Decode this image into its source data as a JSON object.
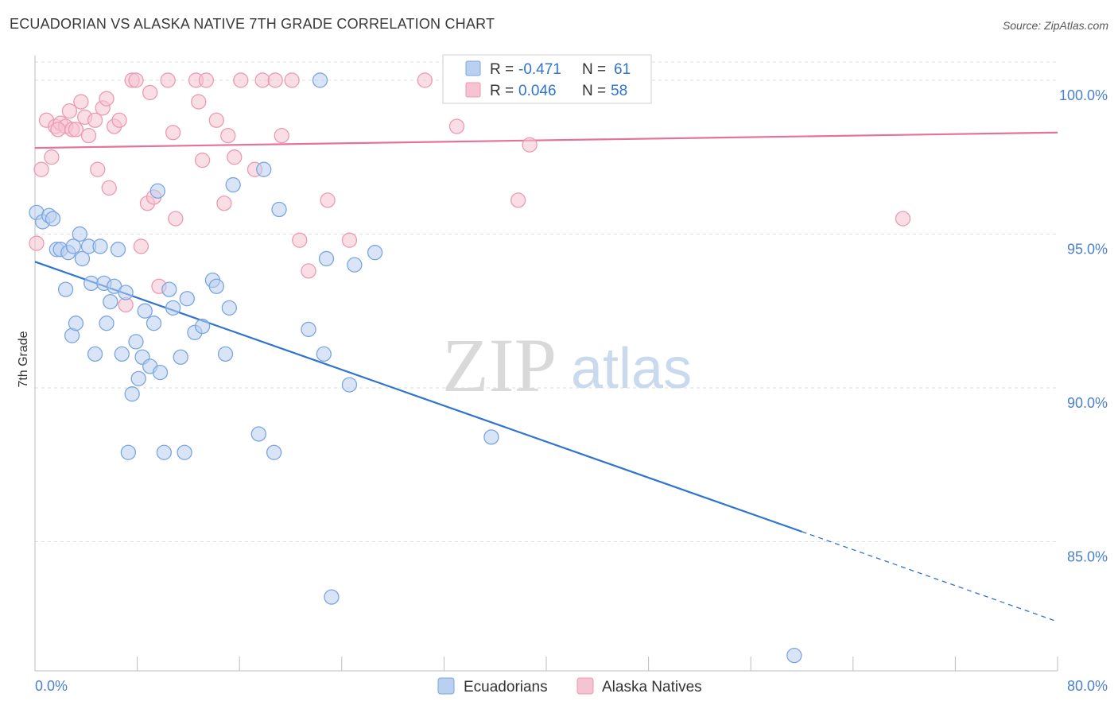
{
  "header": {
    "title": "ECUADORIAN VS ALASKA NATIVE 7TH GRADE CORRELATION CHART",
    "source": "Source: ZipAtlas.com"
  },
  "watermark": {
    "zip": "ZIP",
    "atlas": "atlas"
  },
  "legend_box": {
    "rows": [
      {
        "r_label": "R =",
        "r_value": "-0.471",
        "n_label": "N =",
        "n_value": "61"
      },
      {
        "r_label": "R =",
        "r_value": "0.046",
        "n_label": "N =",
        "n_value": "58"
      }
    ]
  },
  "bottom_legend": {
    "items": [
      "Ecuadorians",
      "Alaska Natives"
    ]
  },
  "colors": {
    "blue_fill": "#b9d0f1",
    "blue_stroke": "#7aa6e0",
    "blue_line": "#2f74d0",
    "pink_fill": "#f6c3d2",
    "pink_stroke": "#ec9ab3",
    "pink_line": "#e4729a",
    "tick": "#4a7fd0",
    "grid": "#dcdcdc"
  },
  "chart_data": {
    "type": "scatter",
    "title": "ECUADORIAN VS ALASKA NATIVE 7TH GRADE CORRELATION CHART",
    "xlabel": "",
    "ylabel": "7th Grade",
    "xlim": [
      0,
      80
    ],
    "ylim": [
      80.8,
      100.8
    ],
    "x_tick_labels": [
      "0.0%",
      "80.0%"
    ],
    "y_tick_labels": [
      "100.0%",
      "95.0%",
      "90.0%",
      "85.0%"
    ],
    "y_ticks": [
      100,
      95,
      90,
      85
    ],
    "grid": true,
    "legend_position": "top-center",
    "series": [
      {
        "name": "Ecuadorians",
        "r": -0.471,
        "n": 61,
        "trend": {
          "x0": 0,
          "y0": 94.1,
          "x_solid_end": 60,
          "x1": 80,
          "y1": 82.4
        },
        "points": [
          [
            0.1,
            95.7
          ],
          [
            0.6,
            95.4
          ],
          [
            1.1,
            95.6
          ],
          [
            1.4,
            95.5
          ],
          [
            1.7,
            94.5
          ],
          [
            2.0,
            94.5
          ],
          [
            2.4,
            93.2
          ],
          [
            2.6,
            94.4
          ],
          [
            2.9,
            91.7
          ],
          [
            3.2,
            92.1
          ],
          [
            3.5,
            95.0
          ],
          [
            3.7,
            94.2
          ],
          [
            4.2,
            94.6
          ],
          [
            4.4,
            93.4
          ],
          [
            4.7,
            91.1
          ],
          [
            5.1,
            94.6
          ],
          [
            5.4,
            93.4
          ],
          [
            5.6,
            92.1
          ],
          [
            5.9,
            92.8
          ],
          [
            6.2,
            93.3
          ],
          [
            6.5,
            94.5
          ],
          [
            6.8,
            91.1
          ],
          [
            7.1,
            93.1
          ],
          [
            7.3,
            87.9
          ],
          [
            7.6,
            89.8
          ],
          [
            7.9,
            91.5
          ],
          [
            8.1,
            90.3
          ],
          [
            8.4,
            91.0
          ],
          [
            8.6,
            92.5
          ],
          [
            9.0,
            90.7
          ],
          [
            9.3,
            92.1
          ],
          [
            9.6,
            96.4
          ],
          [
            9.8,
            90.5
          ],
          [
            10.1,
            87.9
          ],
          [
            10.5,
            93.2
          ],
          [
            10.8,
            92.6
          ],
          [
            11.4,
            91.0
          ],
          [
            11.7,
            87.9
          ],
          [
            11.9,
            92.9
          ],
          [
            12.5,
            91.8
          ],
          [
            13.1,
            92.0
          ],
          [
            13.9,
            93.5
          ],
          [
            14.2,
            93.3
          ],
          [
            14.9,
            91.1
          ],
          [
            15.2,
            92.6
          ],
          [
            15.5,
            96.6
          ],
          [
            17.5,
            88.5
          ],
          [
            17.9,
            97.1
          ],
          [
            18.7,
            87.9
          ],
          [
            19.1,
            95.8
          ],
          [
            21.4,
            91.9
          ],
          [
            22.3,
            100.0
          ],
          [
            22.6,
            91.1
          ],
          [
            22.8,
            94.2
          ],
          [
            23.2,
            83.2
          ],
          [
            24.6,
            90.1
          ],
          [
            25.0,
            94.0
          ],
          [
            26.6,
            94.4
          ],
          [
            35.7,
            88.4
          ],
          [
            59.4,
            81.3
          ],
          [
            3.0,
            94.6
          ]
        ]
      },
      {
        "name": "Alaska Natives",
        "r": 0.046,
        "n": 58,
        "trend": {
          "x0": 0,
          "y0": 97.8,
          "x1": 80,
          "y1": 98.3
        },
        "points": [
          [
            0.1,
            94.7
          ],
          [
            0.5,
            97.1
          ],
          [
            0.9,
            98.7
          ],
          [
            1.3,
            97.5
          ],
          [
            1.6,
            98.5
          ],
          [
            2.0,
            98.6
          ],
          [
            2.4,
            98.5
          ],
          [
            2.7,
            99.0
          ],
          [
            2.9,
            98.4
          ],
          [
            3.2,
            98.4
          ],
          [
            3.6,
            99.3
          ],
          [
            3.9,
            98.8
          ],
          [
            4.2,
            98.2
          ],
          [
            4.7,
            98.7
          ],
          [
            4.9,
            97.1
          ],
          [
            5.3,
            99.1
          ],
          [
            5.6,
            99.4
          ],
          [
            5.8,
            96.5
          ],
          [
            6.2,
            98.5
          ],
          [
            6.6,
            98.7
          ],
          [
            7.1,
            92.7
          ],
          [
            7.6,
            100.0
          ],
          [
            7.9,
            100.0
          ],
          [
            8.3,
            94.6
          ],
          [
            8.8,
            96.0
          ],
          [
            9.0,
            99.6
          ],
          [
            9.3,
            96.2
          ],
          [
            9.7,
            93.3
          ],
          [
            10.4,
            100.0
          ],
          [
            10.8,
            98.3
          ],
          [
            11.0,
            95.5
          ],
          [
            12.6,
            100.0
          ],
          [
            12.8,
            99.3
          ],
          [
            13.1,
            97.4
          ],
          [
            13.4,
            100.0
          ],
          [
            14.2,
            98.7
          ],
          [
            14.8,
            96.0
          ],
          [
            15.1,
            98.2
          ],
          [
            15.6,
            97.5
          ],
          [
            16.1,
            100.0
          ],
          [
            17.2,
            97.1
          ],
          [
            17.8,
            100.0
          ],
          [
            18.8,
            100.0
          ],
          [
            19.3,
            98.2
          ],
          [
            20.1,
            100.0
          ],
          [
            20.7,
            94.8
          ],
          [
            21.4,
            93.8
          ],
          [
            22.9,
            96.1
          ],
          [
            24.6,
            94.8
          ],
          [
            30.5,
            100.0
          ],
          [
            33.0,
            98.5
          ],
          [
            35.6,
            100.0
          ],
          [
            37.8,
            96.1
          ],
          [
            38.7,
            97.9
          ],
          [
            43.3,
            100.0
          ],
          [
            44.5,
            100.0
          ],
          [
            67.9,
            95.5
          ],
          [
            1.8,
            98.4
          ]
        ]
      }
    ]
  }
}
